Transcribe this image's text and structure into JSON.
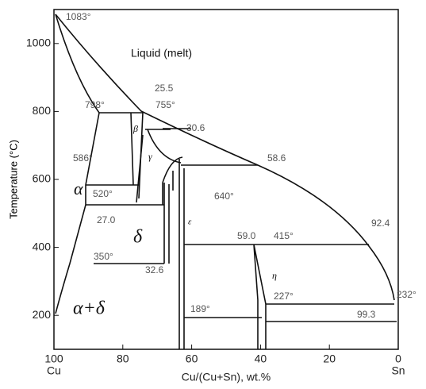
{
  "chart_data": {
    "type": "phase-diagram",
    "x_label": "Cu/(Cu+Sn), wt.%",
    "y_label": "Temperature (°C)",
    "xlim": [
      100,
      0
    ],
    "ylim": [
      100,
      1100
    ],
    "xticks": [
      100,
      80,
      60,
      40,
      20,
      0
    ],
    "yticks": [
      200,
      400,
      600,
      800,
      1000
    ],
    "end_labels": [
      "Cu",
      "Sn"
    ],
    "annotations": [
      "1083°",
      "25.5",
      "798°",
      "755°",
      "30.6",
      "586°",
      "520°",
      "27.0",
      "58.6",
      "640°",
      "59.0",
      "415°",
      "92.4",
      "350°",
      "32.6",
      "227°",
      "232°",
      "189°",
      "99.3"
    ],
    "phases": [
      "Liquid (melt)",
      "α",
      "β",
      "γ",
      "δ",
      "ε",
      "η",
      "α+δ"
    ]
  }
}
